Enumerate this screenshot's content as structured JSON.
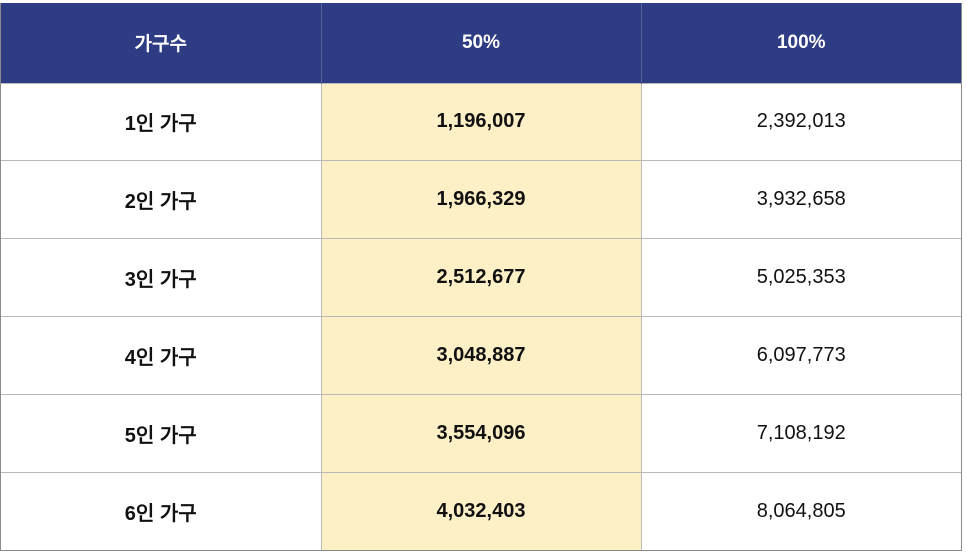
{
  "headers": [
    "가구수",
    "50%",
    "100%"
  ],
  "rows": [
    {
      "household": "1인 가구",
      "pct50": "1,196,007",
      "pct100": "2,392,013"
    },
    {
      "household": "2인 가구",
      "pct50": "1,966,329",
      "pct100": "3,932,658"
    },
    {
      "household": "3인 가구",
      "pct50": "2,512,677",
      "pct100": "5,025,353"
    },
    {
      "household": "4인 가구",
      "pct50": "3,048,887",
      "pct100": "6,097,773"
    },
    {
      "household": "5인 가구",
      "pct50": "3,554,096",
      "pct100": "7,108,192"
    },
    {
      "household": "6인 가구",
      "pct50": "4,032,403",
      "pct100": "8,064,805"
    }
  ],
  "colors": {
    "header_bg": "#2e3c84",
    "header_text": "#ffffff",
    "highlight_bg": "#fdefc6"
  }
}
